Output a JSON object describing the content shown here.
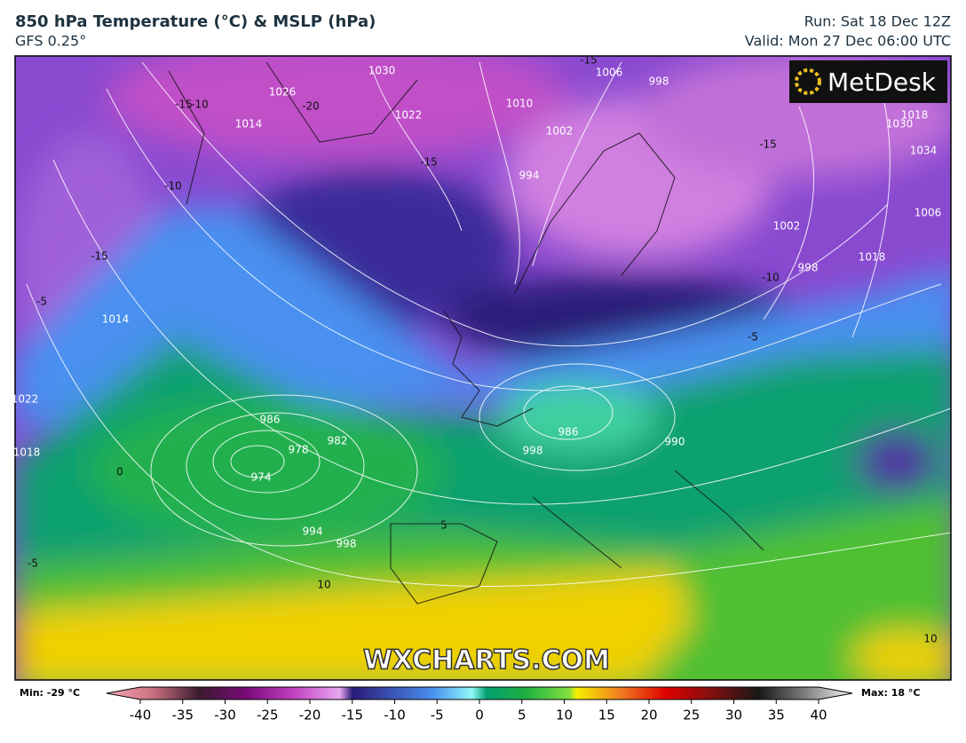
{
  "header": {
    "title": "850 hPa Temperature (°C) & MSLP (hPa)",
    "model": "GFS 0.25°",
    "run": "Run: Sat 18 Dec 12Z",
    "valid": "Valid: Mon 27 Dec 06:00 UTC"
  },
  "logo": "MetDesk",
  "watermark": "WXCHARTS.COM",
  "map": {
    "pressure_labels": [
      "1010",
      "1002",
      "994",
      "1006",
      "998",
      "1030",
      "1026",
      "1022",
      "1014",
      "1018",
      "998",
      "1006",
      "1014",
      "1022",
      "1018",
      "986",
      "982",
      "978",
      "974",
      "994",
      "998",
      "986",
      "990",
      "1002",
      "998",
      "1018",
      "1030",
      "1034"
    ],
    "temperature_labels": [
      "-15",
      "-20",
      "-15",
      "-10",
      "-15",
      "-10",
      "-15",
      "-15",
      "-10",
      "-5",
      "-5",
      "0",
      "-5",
      "10",
      "5",
      "10"
    ]
  },
  "colorbar": {
    "min_label": "Min: -29 °C",
    "max_label": "Max: 18 °C",
    "ticks": [
      -40,
      -35,
      -30,
      -25,
      -20,
      -15,
      -10,
      -5,
      0,
      5,
      10,
      15,
      20,
      25,
      30,
      35,
      40
    ],
    "range": [
      -40,
      40
    ]
  }
}
